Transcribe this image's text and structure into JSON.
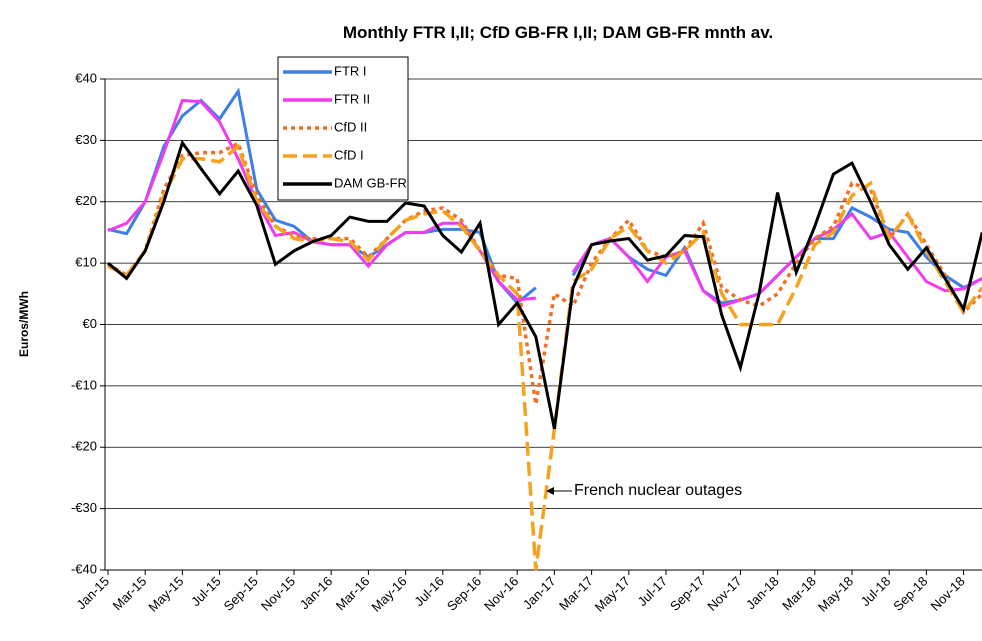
{
  "chart_data": {
    "type": "line",
    "title": "Monthly FTR I,II; CfD GB-FR I,II; DAM GB-FR mnth av.",
    "y_label": "Euros/MWh",
    "annotation": "French nuclear outages",
    "categories": [
      "Jan-15",
      null,
      "Mar-15",
      null,
      "May-15",
      null,
      "Jul-15",
      null,
      "Sep-15",
      null,
      "Nov-15",
      null,
      "Jan-16",
      null,
      "Mar-16",
      null,
      "May-16",
      null,
      "Jul-16",
      null,
      "Sep-16",
      null,
      "Nov-16",
      null,
      "Jan-17",
      null,
      "Mar-17",
      null,
      "May-17",
      null,
      "Jul-17",
      null,
      "Sep-17",
      null,
      "Nov-17",
      null,
      "Jan-18",
      null,
      "Mar-18",
      null,
      "May-18",
      null,
      "Jul-18",
      null,
      "Sep-18",
      null,
      "Nov-18",
      null
    ],
    "ylim": [
      -40,
      40
    ],
    "yticks": [
      {
        "value": -40,
        "label": "-€40"
      },
      {
        "value": -30,
        "label": "-€30"
      },
      {
        "value": -20,
        "label": "-€20"
      },
      {
        "value": -10,
        "label": "-€10"
      },
      {
        "value": 0,
        "label": "€0"
      },
      {
        "value": 10,
        "label": "€10"
      },
      {
        "value": 20,
        "label": "€20"
      },
      {
        "value": 30,
        "label": "€30"
      },
      {
        "value": 40,
        "label": "€40"
      }
    ],
    "grid": true,
    "series": [
      {
        "name": "FTR I",
        "color": "#3d7fe6",
        "dash": "solid",
        "values": [
          15.5,
          14.8,
          20,
          29,
          34,
          36.5,
          33.5,
          38,
          22,
          17,
          16,
          13.5,
          13,
          13,
          11,
          13,
          15,
          15,
          15.5,
          15.5,
          15,
          7,
          3.5,
          6,
          null,
          8,
          13,
          14,
          11,
          9,
          8,
          12.5,
          5.5,
          3.5,
          4,
          5,
          8,
          11,
          14,
          14,
          19,
          17.5,
          15.5,
          15,
          11,
          8,
          6,
          7.5
        ]
      },
      {
        "name": "FTR II",
        "color": "#f03cf0",
        "dash": "solid",
        "values": [
          15.3,
          16.5,
          20,
          28,
          36.5,
          36.3,
          33,
          27,
          20,
          14.5,
          15,
          13.5,
          13,
          13,
          9.5,
          13,
          15,
          15,
          16.5,
          16.5,
          12,
          7,
          4,
          4.3,
          null,
          8.5,
          13,
          14,
          11,
          7,
          11,
          12,
          5.5,
          3,
          4,
          5,
          8,
          11,
          14,
          15.5,
          18,
          14,
          15,
          11,
          7,
          5.5,
          5.8,
          7.5
        ]
      },
      {
        "name": "CfD II",
        "color": "#f07028",
        "dash": "dotted",
        "values": [
          9.8,
          8,
          12,
          22,
          27.5,
          28,
          28,
          29.5,
          21,
          16,
          14.5,
          14,
          14,
          14,
          11,
          14,
          17,
          18.5,
          19,
          17,
          12,
          8,
          7.5,
          -13,
          5,
          3,
          10,
          14,
          17,
          12,
          11,
          12,
          16.5,
          6,
          4,
          3,
          5,
          10,
          14,
          16,
          23,
          22,
          14,
          18,
          13,
          8,
          2,
          5
        ]
      },
      {
        "name": "CfD I",
        "color": "#f5a31e",
        "dash": "dashed",
        "values": [
          9.5,
          8,
          12,
          21,
          27,
          27,
          26.5,
          29,
          20,
          16,
          14,
          13.5,
          14,
          13.5,
          10.5,
          14,
          17,
          18,
          18.5,
          16,
          12,
          8,
          5,
          -40,
          -17,
          7,
          9,
          14,
          16,
          12,
          10,
          12,
          15,
          5,
          0,
          0,
          0,
          6,
          13,
          15,
          21,
          23,
          14,
          18,
          12,
          7,
          2,
          6
        ]
      },
      {
        "name": "DAM GB-FR",
        "color": "#000000",
        "dash": "solid",
        "values": [
          10,
          7.5,
          12,
          20,
          29.6,
          25.4,
          21.3,
          25,
          19.4,
          9.8,
          12,
          13.5,
          14.5,
          17.5,
          16.8,
          16.8,
          19.8,
          19.3,
          14.5,
          11.8,
          16.5,
          0,
          3.5,
          -2,
          -17,
          6,
          13,
          13.6,
          14,
          10.5,
          11.2,
          14.5,
          14.3,
          1.5,
          -7,
          5,
          21.5,
          8.5,
          16,
          24.5,
          26.3,
          20,
          13,
          9,
          12.5,
          7.5,
          2.5,
          15
        ]
      }
    ]
  }
}
